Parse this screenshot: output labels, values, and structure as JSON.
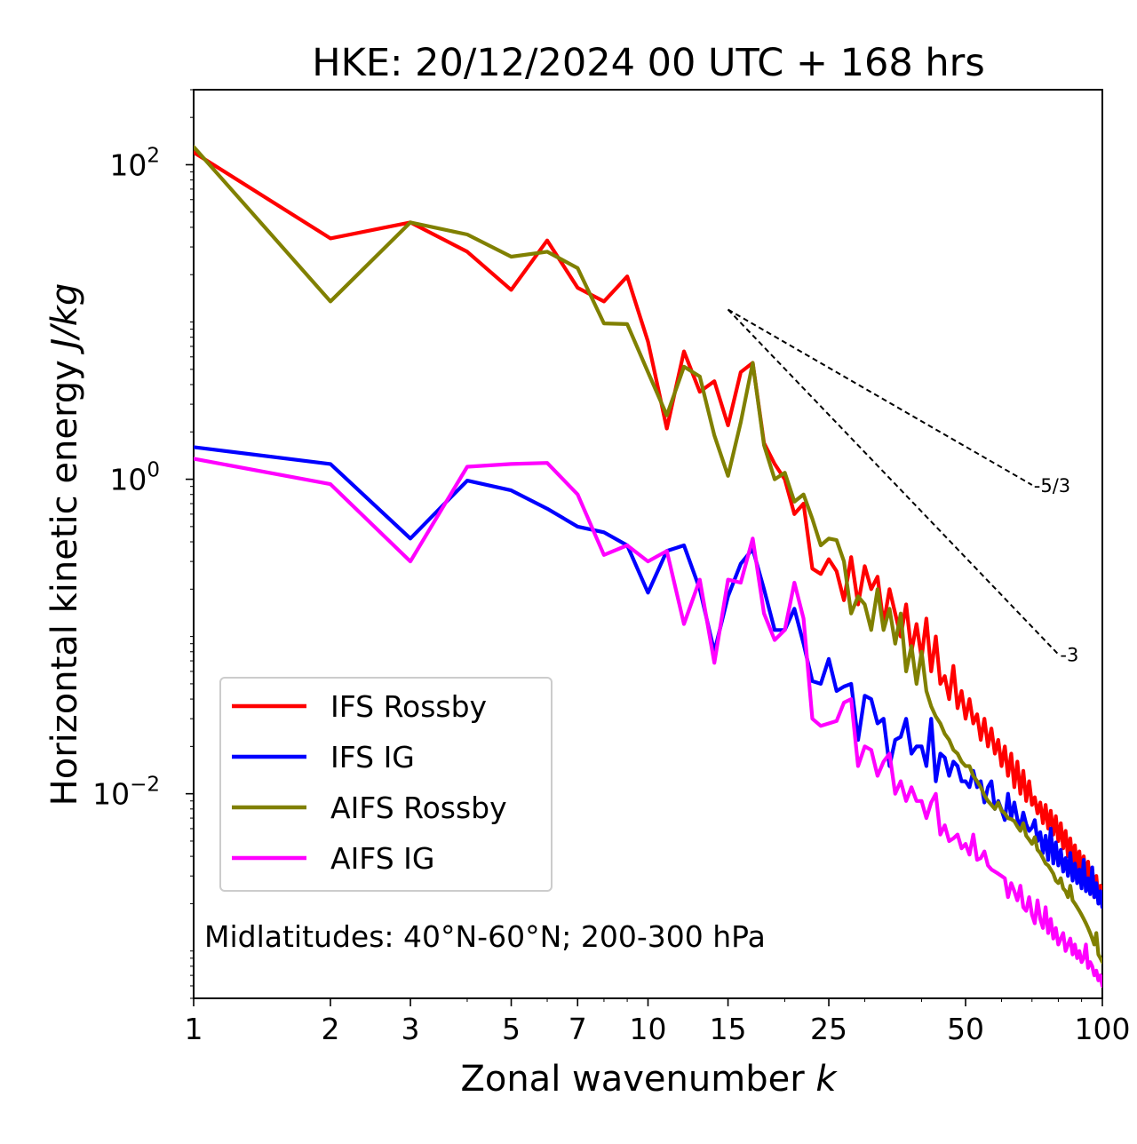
{
  "chart_data": {
    "type": "line",
    "title": "HKE: 20/12/2024 00 UTC + 168 hrs",
    "xlabel": "Zonal wavenumber",
    "xlabel_var": "k",
    "ylabel": "Horizontal kinetic energy",
    "ylabel_unit": "J/kg",
    "xscale": "log",
    "yscale": "log",
    "xlim": [
      1,
      100
    ],
    "ylim": [
      0.0005,
      300
    ],
    "grid": false,
    "legend_position": "lower-left",
    "annotation": "Midlatitudes: 40°N-60°N; 200-300 hPa",
    "x_ticks": [
      {
        "value": 1,
        "label": "1"
      },
      {
        "value": 2,
        "label": "2"
      },
      {
        "value": 3,
        "label": "3"
      },
      {
        "value": 5,
        "label": "5"
      },
      {
        "value": 7,
        "label": "7"
      },
      {
        "value": 10,
        "label": "10"
      },
      {
        "value": 15,
        "label": "15"
      },
      {
        "value": 25,
        "label": "25"
      },
      {
        "value": 50,
        "label": "50"
      },
      {
        "value": 100,
        "label": "100"
      }
    ],
    "y_ticks": [
      {
        "value": 100,
        "base": "10",
        "exp": "2"
      },
      {
        "value": 1,
        "base": "10",
        "exp": "0"
      },
      {
        "value": 0.01,
        "base": "10",
        "exp": "−2"
      }
    ],
    "reference_lines": [
      {
        "label": "-5/3",
        "x": [
          15,
          70
        ],
        "y": [
          12,
          0.92
        ]
      },
      {
        "label": "-3",
        "x": [
          15,
          80
        ],
        "y": [
          12,
          0.077
        ]
      }
    ],
    "series": [
      {
        "name": "IFS Rossby",
        "color": "#ff0000",
        "x": [
          1,
          2,
          3,
          4,
          5,
          6,
          7,
          8,
          9,
          10,
          11,
          12,
          13,
          14,
          15,
          16,
          17,
          18,
          19,
          20,
          21,
          22,
          23,
          24,
          25,
          26,
          27,
          28,
          29,
          30,
          31,
          32,
          33,
          34,
          35,
          36,
          37,
          38,
          39,
          40,
          41,
          42,
          43,
          44,
          45,
          46,
          47,
          48,
          49,
          50,
          51,
          52,
          53,
          54,
          55,
          56,
          57,
          58,
          59,
          60,
          61,
          62,
          63,
          64,
          65,
          66,
          67,
          68,
          69,
          70,
          71,
          72,
          73,
          74,
          75,
          76,
          77,
          78,
          79,
          80,
          81,
          82,
          83,
          84,
          85,
          86,
          87,
          88,
          89,
          90,
          91,
          92,
          93,
          94,
          95,
          96,
          97,
          98,
          99,
          100
        ],
        "y": [
          120,
          34,
          43,
          28,
          16,
          33,
          16.5,
          13.5,
          19.5,
          7.5,
          2.1,
          6.5,
          3.6,
          4.2,
          2.2,
          4.8,
          5.5,
          1.7,
          1.25,
          1.0,
          0.6,
          0.7,
          0.27,
          0.25,
          0.31,
          0.26,
          0.17,
          0.32,
          0.16,
          0.28,
          0.2,
          0.24,
          0.12,
          0.2,
          0.14,
          0.1,
          0.16,
          0.08,
          0.12,
          0.073,
          0.13,
          0.06,
          0.1,
          0.05,
          0.056,
          0.04,
          0.065,
          0.035,
          0.045,
          0.03,
          0.04,
          0.028,
          0.032,
          0.022,
          0.03,
          0.02,
          0.026,
          0.018,
          0.022,
          0.015,
          0.02,
          0.013,
          0.018,
          0.011,
          0.016,
          0.01,
          0.014,
          0.009,
          0.012,
          0.0085,
          0.0095,
          0.0075,
          0.0088,
          0.0065,
          0.0085,
          0.006,
          0.0078,
          0.0055,
          0.0072,
          0.005,
          0.0065,
          0.0045,
          0.0058,
          0.004,
          0.0052,
          0.0036,
          0.0047,
          0.0033,
          0.0043,
          0.003,
          0.004,
          0.0028,
          0.0037,
          0.0026,
          0.0033,
          0.0022,
          0.003,
          0.0021,
          0.0026,
          0.0019
        ]
      },
      {
        "name": "IFS IG",
        "color": "#0000ff",
        "x": [
          1,
          2,
          3,
          4,
          5,
          6,
          7,
          8,
          9,
          10,
          11,
          12,
          13,
          14,
          15,
          16,
          17,
          18,
          19,
          20,
          21,
          22,
          23,
          24,
          25,
          26,
          27,
          28,
          29,
          30,
          31,
          32,
          33,
          34,
          35,
          36,
          37,
          38,
          39,
          40,
          41,
          42,
          43,
          44,
          45,
          46,
          47,
          48,
          49,
          50,
          51,
          52,
          53,
          54,
          55,
          56,
          57,
          58,
          59,
          60,
          61,
          62,
          63,
          64,
          65,
          66,
          67,
          68,
          69,
          70,
          71,
          72,
          73,
          74,
          75,
          76,
          77,
          78,
          79,
          80,
          81,
          82,
          83,
          84,
          85,
          86,
          87,
          88,
          89,
          90,
          91,
          92,
          93,
          94,
          95,
          96,
          97,
          98,
          99,
          100
        ],
        "y": [
          1.6,
          1.25,
          0.42,
          0.98,
          0.85,
          0.65,
          0.5,
          0.46,
          0.38,
          0.19,
          0.35,
          0.38,
          0.2,
          0.08,
          0.18,
          0.29,
          0.36,
          0.2,
          0.11,
          0.11,
          0.15,
          0.09,
          0.052,
          0.05,
          0.072,
          0.045,
          0.048,
          0.05,
          0.022,
          0.042,
          0.04,
          0.028,
          0.03,
          0.015,
          0.022,
          0.023,
          0.03,
          0.018,
          0.02,
          0.02,
          0.015,
          0.03,
          0.012,
          0.018,
          0.017,
          0.013,
          0.016,
          0.015,
          0.012,
          0.012,
          0.011,
          0.014,
          0.011,
          0.012,
          0.0088,
          0.011,
          0.012,
          0.008,
          0.009,
          0.0079,
          0.0068,
          0.01,
          0.007,
          0.0088,
          0.0069,
          0.0062,
          0.0076,
          0.0064,
          0.0058,
          0.0061,
          0.0068,
          0.005,
          0.0057,
          0.0042,
          0.0054,
          0.0038,
          0.006,
          0.0036,
          0.0049,
          0.0035,
          0.0044,
          0.0032,
          0.0039,
          0.003,
          0.0042,
          0.0028,
          0.0036,
          0.0027,
          0.0033,
          0.0025,
          0.0038,
          0.0024,
          0.0029,
          0.0023,
          0.0034,
          0.0022,
          0.0027,
          0.002,
          0.0024,
          0.0019
        ]
      },
      {
        "name": "AIFS Rossby",
        "color": "#808000",
        "x": [
          1,
          2,
          3,
          4,
          5,
          6,
          7,
          8,
          9,
          10,
          11,
          12,
          13,
          14,
          15,
          16,
          17,
          18,
          19,
          20,
          21,
          22,
          23,
          24,
          25,
          26,
          27,
          28,
          29,
          30,
          31,
          32,
          33,
          34,
          35,
          36,
          37,
          38,
          39,
          40,
          41,
          42,
          43,
          44,
          45,
          46,
          47,
          48,
          49,
          50,
          51,
          52,
          53,
          54,
          55,
          56,
          57,
          58,
          59,
          60,
          61,
          62,
          63,
          64,
          65,
          66,
          67,
          68,
          69,
          70,
          71,
          72,
          73,
          74,
          75,
          76,
          77,
          78,
          79,
          80,
          81,
          82,
          83,
          84,
          85,
          86,
          87,
          88,
          89,
          90,
          91,
          92,
          93,
          94,
          95,
          96,
          97,
          98,
          99,
          100
        ],
        "y": [
          130,
          13.5,
          43,
          36,
          26,
          28,
          22,
          9.8,
          9.7,
          4.8,
          2.55,
          5.2,
          4.5,
          1.9,
          1.05,
          2.3,
          5.5,
          1.65,
          1.0,
          1.1,
          0.72,
          0.8,
          0.56,
          0.38,
          0.42,
          0.41,
          0.3,
          0.14,
          0.18,
          0.16,
          0.11,
          0.2,
          0.11,
          0.15,
          0.09,
          0.14,
          0.06,
          0.087,
          0.05,
          0.08,
          0.045,
          0.036,
          0.031,
          0.028,
          0.024,
          0.022,
          0.019,
          0.018,
          0.016,
          0.015,
          0.015,
          0.013,
          0.012,
          0.011,
          0.0098,
          0.009,
          0.0085,
          0.008,
          0.0088,
          0.0078,
          0.0075,
          0.007,
          0.0069,
          0.0067,
          0.0062,
          0.0058,
          0.0065,
          0.0054,
          0.0051,
          0.0048,
          0.0053,
          0.0044,
          0.0042,
          0.0039,
          0.0036,
          0.0035,
          0.0033,
          0.0031,
          0.0028,
          0.0027,
          0.0029,
          0.0025,
          0.0024,
          0.0022,
          0.0026,
          0.0021,
          0.002,
          0.0019,
          0.0018,
          0.0017,
          0.0016,
          0.0015,
          0.0014,
          0.0013,
          0.0012,
          0.0011,
          0.0013,
          0.00095,
          0.0009,
          0.00085
        ]
      },
      {
        "name": "AIFS IG",
        "color": "#ff00ff",
        "x": [
          1,
          2,
          3,
          4,
          5,
          6,
          7,
          8,
          9,
          10,
          11,
          12,
          13,
          14,
          15,
          16,
          17,
          18,
          19,
          20,
          21,
          22,
          23,
          24,
          25,
          26,
          27,
          28,
          29,
          30,
          31,
          32,
          33,
          34,
          35,
          36,
          37,
          38,
          39,
          40,
          41,
          42,
          43,
          44,
          45,
          46,
          47,
          48,
          49,
          50,
          51,
          52,
          53,
          54,
          55,
          56,
          57,
          58,
          59,
          60,
          61,
          62,
          63,
          64,
          65,
          66,
          67,
          68,
          69,
          70,
          71,
          72,
          73,
          74,
          75,
          76,
          77,
          78,
          79,
          80,
          81,
          82,
          83,
          84,
          85,
          86,
          87,
          88,
          89,
          90,
          91,
          92,
          93,
          94,
          95,
          96,
          97,
          98,
          99,
          100
        ],
        "y": [
          1.35,
          0.93,
          0.3,
          1.2,
          1.25,
          1.27,
          0.8,
          0.33,
          0.38,
          0.3,
          0.35,
          0.12,
          0.23,
          0.068,
          0.23,
          0.22,
          0.42,
          0.14,
          0.095,
          0.11,
          0.22,
          0.13,
          0.03,
          0.027,
          0.028,
          0.029,
          0.038,
          0.04,
          0.015,
          0.02,
          0.019,
          0.013,
          0.016,
          0.018,
          0.01,
          0.012,
          0.009,
          0.011,
          0.009,
          0.009,
          0.007,
          0.0088,
          0.01,
          0.0055,
          0.0063,
          0.005,
          0.0052,
          0.0055,
          0.0045,
          0.0048,
          0.0041,
          0.0055,
          0.0038,
          0.0039,
          0.0043,
          0.0035,
          0.0033,
          0.0032,
          0.0031,
          0.003,
          0.0029,
          0.0022,
          0.0027,
          0.0024,
          0.0021,
          0.0026,
          0.0019,
          0.0018,
          0.0022,
          0.0017,
          0.0015,
          0.0021,
          0.0016,
          0.0014,
          0.0019,
          0.0013,
          0.0016,
          0.0012,
          0.0014,
          0.0011,
          0.0012,
          0.0013,
          0.001,
          0.0011,
          0.0012,
          0.00095,
          0.0011,
          0.0009,
          0.001,
          0.00085,
          0.0009,
          0.0011,
          0.00078,
          0.00085,
          0.0008,
          0.0007,
          0.00075,
          0.00065,
          0.0007,
          0.0006
        ]
      }
    ]
  }
}
